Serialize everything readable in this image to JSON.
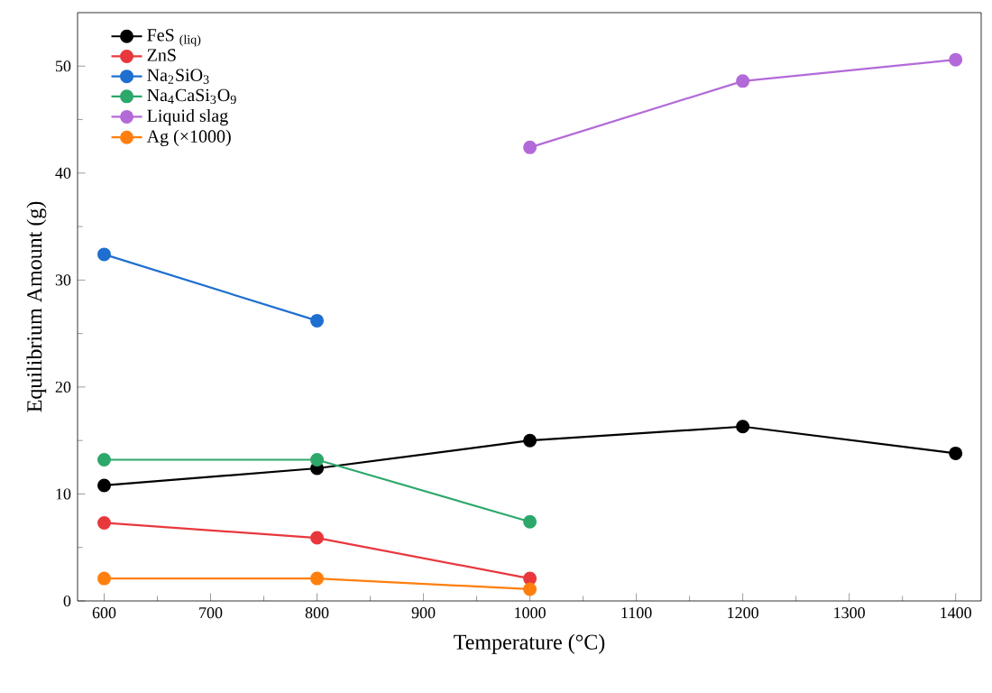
{
  "chart_data": {
    "type": "line",
    "xlabel": "Temperature (°C)",
    "ylabel": "Equilibrium Amount (g)",
    "x": [
      600,
      800,
      1000,
      1200,
      1400
    ],
    "series": [
      {
        "name": "FeS $_{(liq)}$",
        "color": "#000000",
        "values": [
          10.8,
          12.4,
          15.0,
          16.3,
          13.8
        ]
      },
      {
        "name": "ZnS",
        "color": "#e8383d",
        "values": [
          7.3,
          5.9,
          2.1,
          null,
          null
        ]
      },
      {
        "name": "Na$_{2}$SiO$_{3}$",
        "color": "#1f6fd0",
        "values": [
          32.4,
          26.2,
          null,
          null,
          null
        ]
      },
      {
        "name": "Na$_{4}$CaSi$_{3}$O$_{9}$",
        "color": "#2ca86a",
        "values": [
          13.2,
          13.2,
          7.4,
          null,
          null
        ]
      },
      {
        "name": "Liquid slag",
        "color": "#b36ad8",
        "values": [
          null,
          null,
          42.4,
          48.6,
          50.6
        ]
      },
      {
        "name": "Ag (×1000)",
        "color": "#ff7f0e",
        "values": [
          2.1,
          2.1,
          1.1,
          null,
          null
        ]
      }
    ],
    "xlim": [
      575,
      1424
    ],
    "ylim": [
      0,
      55
    ],
    "xticks": [
      600,
      700,
      800,
      900,
      1000,
      1100,
      1200,
      1300,
      1400
    ],
    "yticks": [
      0,
      10,
      20,
      30,
      40,
      50
    ],
    "grid": false,
    "legend": "top left",
    "marker": "circle",
    "line_style": "solid"
  }
}
